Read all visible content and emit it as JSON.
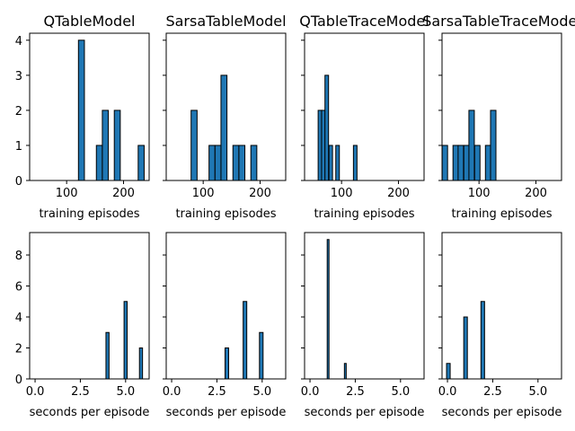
{
  "chart_data": [
    {
      "type": "bar",
      "title": "QTableModel",
      "xlabel": "training episodes",
      "xlim": [
        35,
        245
      ],
      "ylim": [
        0,
        4.2
      ],
      "xticks": [
        100,
        200
      ],
      "yticks": [
        0,
        1,
        2,
        3,
        4
      ],
      "grid": false,
      "bin_width": 10.5,
      "bars": [
        {
          "x": 126,
          "value": 4
        },
        {
          "x": 157.5,
          "value": 1
        },
        {
          "x": 168,
          "value": 2
        },
        {
          "x": 189,
          "value": 2
        },
        {
          "x": 231,
          "value": 1
        }
      ]
    },
    {
      "type": "bar",
      "title": "SarsaTableModel",
      "xlabel": "training episodes",
      "xlim": [
        35,
        245
      ],
      "ylim": [
        0,
        4.2
      ],
      "xticks": [
        100,
        200
      ],
      "yticks": [
        0,
        1,
        2,
        3,
        4
      ],
      "grid": false,
      "bin_width": 10.5,
      "bars": [
        {
          "x": 84,
          "value": 2
        },
        {
          "x": 115.5,
          "value": 1
        },
        {
          "x": 126,
          "value": 1
        },
        {
          "x": 136.5,
          "value": 3
        },
        {
          "x": 157.5,
          "value": 1
        },
        {
          "x": 168,
          "value": 1
        },
        {
          "x": 189,
          "value": 1
        }
      ]
    },
    {
      "type": "bar",
      "title": "QTableTraceModel",
      "xlabel": "training episodes",
      "xlim": [
        35,
        245
      ],
      "ylim": [
        0,
        4.2
      ],
      "xticks": [
        100,
        200
      ],
      "yticks": [
        0,
        1,
        2,
        3,
        4
      ],
      "grid": false,
      "bin_width": 6.3,
      "bars": [
        {
          "x": 62,
          "value": 2
        },
        {
          "x": 68,
          "value": 2
        },
        {
          "x": 74,
          "value": 3
        },
        {
          "x": 81,
          "value": 1
        },
        {
          "x": 93,
          "value": 1
        },
        {
          "x": 124,
          "value": 1
        }
      ]
    },
    {
      "type": "bar",
      "title": "SarsaTableTraceModel",
      "xlabel": "training episodes",
      "xlim": [
        35,
        245
      ],
      "ylim": [
        0,
        4.2
      ],
      "xticks": [
        100,
        200
      ],
      "yticks": [
        0,
        1,
        2,
        3,
        4
      ],
      "grid": false,
      "bin_width": 9.5,
      "bars": [
        {
          "x": 40,
          "value": 1
        },
        {
          "x": 59,
          "value": 1
        },
        {
          "x": 68,
          "value": 1
        },
        {
          "x": 78,
          "value": 1
        },
        {
          "x": 87,
          "value": 2
        },
        {
          "x": 97,
          "value": 1
        },
        {
          "x": 116,
          "value": 1
        },
        {
          "x": 125,
          "value": 2
        }
      ]
    },
    {
      "type": "bar",
      "title": "",
      "xlabel": "seconds per episode",
      "xlim": [
        -0.3,
        6.3
      ],
      "ylim": [
        0,
        9.45
      ],
      "xticks": [
        0.0,
        2.5,
        5.0
      ],
      "xtick_labels": [
        "0.0",
        "2.5",
        "5.0"
      ],
      "yticks": [
        0,
        2,
        4,
        6,
        8
      ],
      "grid": false,
      "bin_width": 0.17,
      "bars": [
        {
          "x": 4.0,
          "value": 3
        },
        {
          "x": 5.0,
          "value": 5
        },
        {
          "x": 5.85,
          "value": 2
        }
      ]
    },
    {
      "type": "bar",
      "title": "",
      "xlabel": "seconds per episode",
      "xlim": [
        -0.3,
        6.3
      ],
      "ylim": [
        0,
        9.45
      ],
      "xticks": [
        0.0,
        2.5,
        5.0
      ],
      "xtick_labels": [
        "0.0",
        "2.5",
        "5.0"
      ],
      "yticks": [
        0,
        2,
        4,
        6,
        8
      ],
      "grid": false,
      "bin_width": 0.2,
      "bars": [
        {
          "x": 3.05,
          "value": 2
        },
        {
          "x": 4.05,
          "value": 5
        },
        {
          "x": 4.95,
          "value": 3
        }
      ]
    },
    {
      "type": "bar",
      "title": "",
      "xlabel": "seconds per episode",
      "xlim": [
        -0.3,
        6.3
      ],
      "ylim": [
        0,
        9.45
      ],
      "xticks": [
        0.0,
        2.5,
        5.0
      ],
      "xtick_labels": [
        "0.0",
        "2.5",
        "5.0"
      ],
      "yticks": [
        0,
        2,
        4,
        6,
        8
      ],
      "grid": false,
      "bin_width": 0.1,
      "bars": [
        {
          "x": 1.0,
          "value": 9
        },
        {
          "x": 1.95,
          "value": 1
        }
      ]
    },
    {
      "type": "bar",
      "title": "",
      "xlabel": "seconds per episode",
      "xlim": [
        -0.3,
        6.3
      ],
      "ylim": [
        0,
        9.45
      ],
      "xticks": [
        0.0,
        2.5,
        5.0
      ],
      "xtick_labels": [
        "0.0",
        "2.5",
        "5.0"
      ],
      "yticks": [
        0,
        2,
        4,
        6,
        8
      ],
      "grid": false,
      "bin_width": 0.2,
      "bars": [
        {
          "x": 0.05,
          "value": 1
        },
        {
          "x": 1.0,
          "value": 4
        },
        {
          "x": 1.95,
          "value": 5
        }
      ]
    }
  ]
}
